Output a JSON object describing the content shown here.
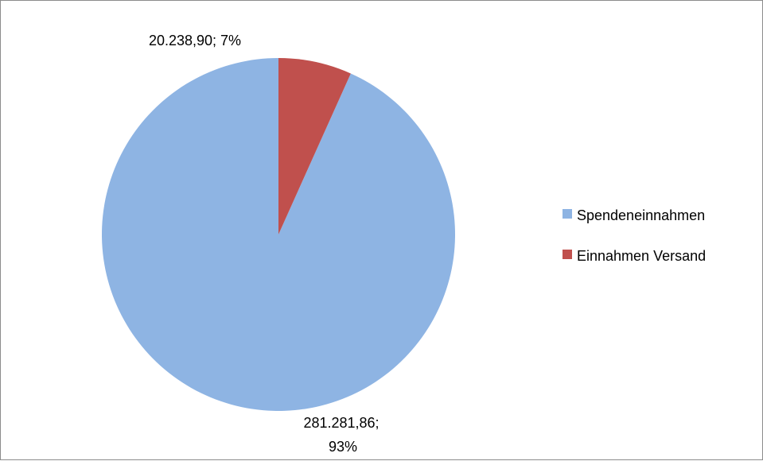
{
  "chart_data": {
    "type": "pie",
    "slices": [
      {
        "name": "Spendeneinnahmen",
        "value": 281281.86,
        "value_label": "281.281,86",
        "percent_label": "93%",
        "color": "#8EB4E3"
      },
      {
        "name": "Einnahmen Versand",
        "value": 20238.9,
        "value_label": "20.238,90",
        "percent_label": "7%",
        "color": "#C0504D"
      }
    ],
    "legend_position": "right",
    "start_angle": "12 o'clock",
    "direction": "counterclockwise"
  }
}
